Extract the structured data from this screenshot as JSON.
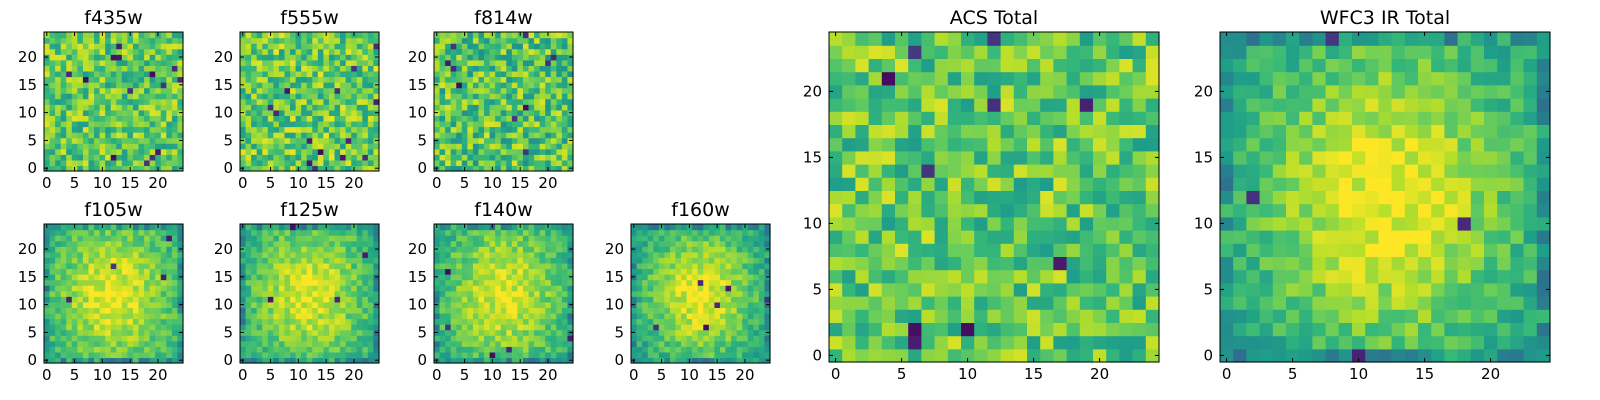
{
  "figure": {
    "colormap": "viridis",
    "colors": {
      "viridis_stops": [
        "#440154",
        "#482878",
        "#3e4989",
        "#31688e",
        "#26828e",
        "#1f9e89",
        "#35b779",
        "#6ece58",
        "#b5de2b",
        "#fde725"
      ]
    }
  },
  "chart_data": [
    {
      "id": "f435w",
      "type": "heatmap",
      "title": "f435w",
      "grid_size": 25,
      "xticks": [
        0,
        5,
        10,
        15,
        20
      ],
      "yticks": [
        0,
        5,
        10,
        15,
        20
      ],
      "xlim": [
        0,
        24
      ],
      "ylim": [
        0,
        24
      ],
      "pattern": "noise",
      "seed": 11,
      "lo": 0.55,
      "hi": 0.95,
      "dark_count": 14
    },
    {
      "id": "f555w",
      "type": "heatmap",
      "title": "f555w",
      "grid_size": 25,
      "xticks": [
        0,
        5,
        10,
        15,
        20
      ],
      "yticks": [
        0,
        5,
        10,
        15,
        20
      ],
      "xlim": [
        0,
        24
      ],
      "ylim": [
        0,
        24
      ],
      "pattern": "noise",
      "seed": 23,
      "lo": 0.55,
      "hi": 0.97,
      "dark_count": 14
    },
    {
      "id": "f814w",
      "type": "heatmap",
      "title": "f814w",
      "grid_size": 25,
      "xticks": [
        0,
        5,
        10,
        15,
        20
      ],
      "yticks": [
        0,
        5,
        10,
        15,
        20
      ],
      "xlim": [
        0,
        24
      ],
      "ylim": [
        0,
        24
      ],
      "pattern": "noise",
      "seed": 37,
      "lo": 0.5,
      "hi": 0.95,
      "dark_count": 10
    },
    {
      "id": "f105w",
      "type": "heatmap",
      "title": "f105w",
      "grid_size": 25,
      "xticks": [
        0,
        5,
        10,
        15,
        20
      ],
      "yticks": [
        0,
        5,
        10,
        15,
        20
      ],
      "xlim": [
        0,
        24
      ],
      "ylim": [
        0,
        24
      ],
      "pattern": "blob",
      "seed": 41,
      "lo": 0.45,
      "hi": 0.97,
      "dark_count": 4
    },
    {
      "id": "f125w",
      "type": "heatmap",
      "title": "f125w",
      "grid_size": 25,
      "xticks": [
        0,
        5,
        10,
        15,
        20
      ],
      "yticks": [
        0,
        5,
        10,
        15,
        20
      ],
      "xlim": [
        0,
        24
      ],
      "ylim": [
        0,
        24
      ],
      "pattern": "blob",
      "seed": 53,
      "lo": 0.45,
      "hi": 0.95,
      "dark_count": 4
    },
    {
      "id": "f140w",
      "type": "heatmap",
      "title": "f140w",
      "grid_size": 25,
      "xticks": [
        0,
        5,
        10,
        15,
        20
      ],
      "yticks": [
        0,
        5,
        10,
        15,
        20
      ],
      "xlim": [
        0,
        24
      ],
      "ylim": [
        0,
        24
      ],
      "pattern": "blob",
      "seed": 67,
      "lo": 0.45,
      "hi": 0.95,
      "dark_count": 5
    },
    {
      "id": "f160w",
      "type": "heatmap",
      "title": "f160w",
      "grid_size": 25,
      "xticks": [
        0,
        5,
        10,
        15,
        20
      ],
      "yticks": [
        0,
        5,
        10,
        15,
        20
      ],
      "xlim": [
        0,
        24
      ],
      "ylim": [
        0,
        24
      ],
      "pattern": "blob",
      "seed": 71,
      "lo": 0.35,
      "hi": 0.97,
      "dark_count": 6
    },
    {
      "id": "acs_total",
      "type": "heatmap",
      "title": "ACS Total",
      "grid_size": 25,
      "xticks": [
        0,
        5,
        10,
        15,
        20
      ],
      "yticks": [
        0,
        5,
        10,
        15,
        20
      ],
      "xlim": [
        0,
        24
      ],
      "ylim": [
        0,
        24
      ],
      "pattern": "noise",
      "seed": 83,
      "lo": 0.55,
      "hi": 0.95,
      "dark_count": 10
    },
    {
      "id": "wfc3_total",
      "type": "heatmap",
      "title": "WFC3 IR Total",
      "grid_size": 25,
      "xticks": [
        0,
        5,
        10,
        15,
        20
      ],
      "yticks": [
        0,
        5,
        10,
        15,
        20
      ],
      "xlim": [
        0,
        24
      ],
      "ylim": [
        0,
        24
      ],
      "pattern": "blob",
      "seed": 97,
      "lo": 0.35,
      "hi": 0.98,
      "dark_count": 4
    }
  ]
}
